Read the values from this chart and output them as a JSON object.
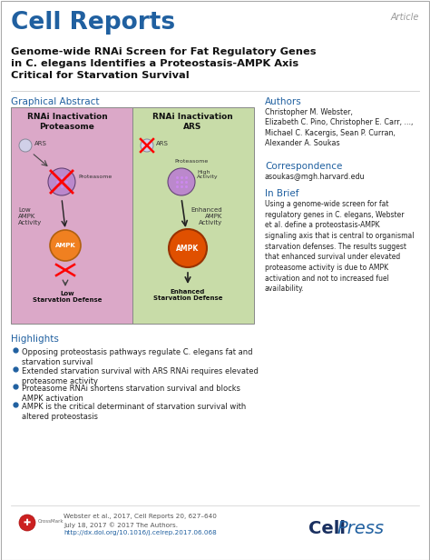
{
  "bg_color": "#ffffff",
  "cell_reports_color": "#2060a0",
  "article_color": "#999999",
  "title_text": "Genome-wide RNAi Screen for Fat Regulatory Genes\nin C. elegans Identifies a Proteostasis-AMPK Axis\nCritical for Starvation Survival",
  "article_label": "Article",
  "journal_name": "Cell Reports",
  "graphical_abstract_label": "Graphical Abstract",
  "authors_label": "Authors",
  "authors_text": "Christopher M. Webster,\nElizabeth C. Pino, Christopher E. Carr, ...,\nMichael C. Kacergis, Sean P. Curran,\nAlexander A. Soukas",
  "correspondence_label": "Correspondence",
  "correspondence_text": "asoukas@mgh.harvard.edu",
  "in_brief_label": "In Brief",
  "in_brief_text": "Using a genome-wide screen for fat\nregulatory genes in C. elegans, Webster\net al. define a proteostasis-AMPK\nsignaling axis that is central to organismal\nstarvation defenses. The results suggest\nthat enhanced survival under elevated\nproteasome activity is due to AMPK\nactivation and not to increased fuel\navailability.",
  "highlights_label": "Highlights",
  "highlights": [
    "Opposing proteostasis pathways regulate C. elegans fat and\nstarvation survival",
    "Extended starvation survival with ARS RNAi requires elevated\nproteasome activity",
    "Proteasome RNAi shortens starvation survival and blocks\nAMPK activation",
    "AMPK is the critical determinant of starvation survival with\naltered proteostasis"
  ],
  "footer_line1": "Webster et al., 2017, Cell Reports 20, 627–640",
  "footer_line2": "July 18, 2017 © 2017 The Authors.",
  "footer_link": "http://dx.doi.org/10.1016/j.celrep.2017.06.068",
  "section_color": "#2060a0",
  "highlight_bullet_color": "#2060a0",
  "footer_link_color": "#2060a0",
  "left_panel_color": "#dba8c8",
  "right_panel_color": "#c8dca8",
  "proteasome_color": "#bb88cc",
  "ampk_left_color": "#f08020",
  "ampk_right_color": "#e05000",
  "panel_border_color": "#888888"
}
